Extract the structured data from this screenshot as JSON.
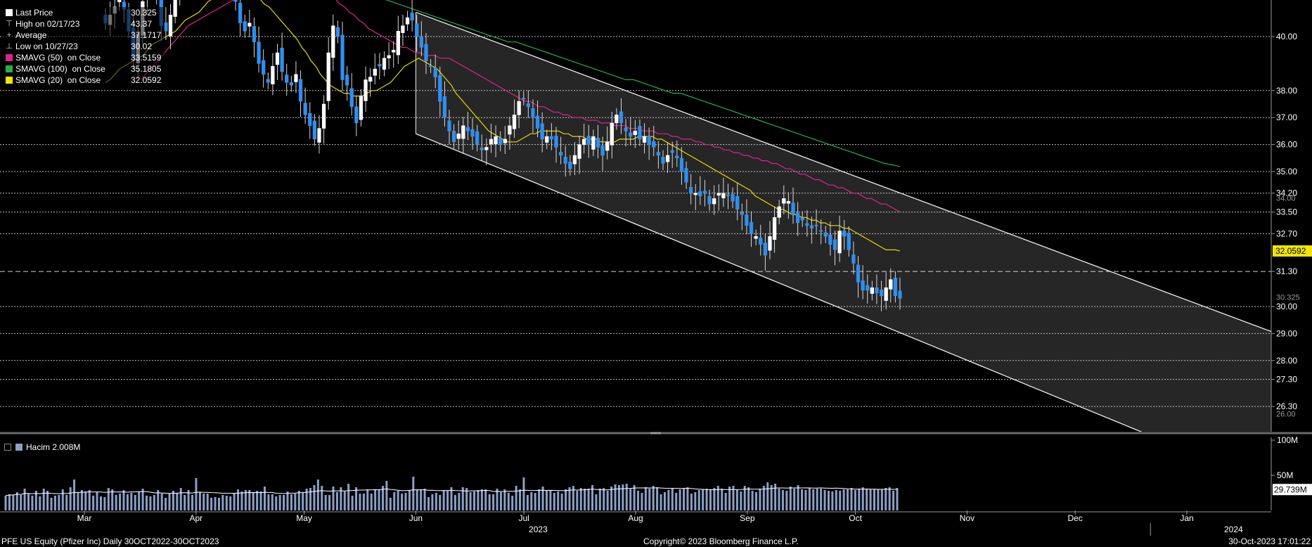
{
  "legend": {
    "items": [
      {
        "label": "Last Price",
        "value": "30.325",
        "color": "#ffffff",
        "icon": "square-swatch"
      },
      {
        "label": "High on 02/17/23",
        "value": "43.37",
        "icon": "high-marker-icon"
      },
      {
        "label": "Average",
        "value": "37.1717",
        "icon": "average-marker-icon"
      },
      {
        "label": "Low on 10/27/23",
        "value": "30.02",
        "icon": "low-marker-icon"
      },
      {
        "label": "SMAVG (50)  on Close",
        "value": "33.5159",
        "color": "#e0218a",
        "icon": "square-swatch"
      },
      {
        "label": "SMAVG (100)  on Close",
        "value": "35.1805",
        "color": "#22b04a",
        "icon": "square-swatch"
      },
      {
        "label": "SMAVG (20)  on Close",
        "value": "32.0592",
        "color": "#f2e600",
        "icon": "square-swatch"
      }
    ]
  },
  "volume_legend": {
    "label": "Hacim 2.008M",
    "color": "#8aa0c8"
  },
  "footer": {
    "left": "PFE US Equity (Pfizer Inc)  Daily 30OCT2022-30OCT2023",
    "center": "Copyright© 2023 Bloomberg Finance L.P.",
    "right": "30-Oct-2023 17:01:22"
  },
  "chart_data": {
    "type": "candlestick",
    "price_axis": {
      "ticks": [
        40.0,
        38.0,
        37.0,
        36.0,
        35.0,
        34.2,
        33.5,
        32.7,
        31.3,
        30.0,
        29.0,
        28.0,
        27.3,
        26.3
      ],
      "labels": [
        "40.00",
        "38.00",
        "37.00",
        "36.00",
        "35.00",
        "34.20",
        "33.50",
        "32.70",
        "31.30",
        "30.00",
        "29.00",
        "28.00",
        "27.30",
        "26.30"
      ],
      "partial_labels": [
        "34.00",
        "30.325",
        "26.00"
      ],
      "highlight_labels": [
        {
          "value": 32.0592,
          "label": "32.0592",
          "color": "#f2e600"
        }
      ],
      "dashed_line": 31.3
    },
    "months": [
      {
        "label": "Mar",
        "date": "2023-03-01"
      },
      {
        "label": "Apr",
        "date": "2023-04-01"
      },
      {
        "label": "May",
        "date": "2023-05-01"
      },
      {
        "label": "Jun",
        "date": "2023-06-01"
      },
      {
        "label": "Jul",
        "date": "2023-07-01"
      },
      {
        "label": "Aug",
        "date": "2023-08-01"
      },
      {
        "label": "Sep",
        "date": "2023-09-01"
      },
      {
        "label": "Oct",
        "date": "2023-10-01"
      },
      {
        "label": "Nov",
        "date": "2023-11-01"
      },
      {
        "label": "Dec",
        "date": "2023-12-01"
      },
      {
        "label": "Jan",
        "date": "2024-01-01"
      }
    ],
    "years": [
      {
        "label": "2023",
        "date": "2023-07-03"
      },
      {
        "label": "2024",
        "date": "2024-01-12"
      }
    ],
    "channel": {
      "start_date": "2023-06-01",
      "end_date": "2024-02-15",
      "upper": [
        40.9,
        28.0
      ],
      "lower": [
        36.4,
        22.2
      ]
    },
    "closes": [
      40.5,
      40.8,
      41.1,
      41.4,
      41.0,
      40.2,
      39.2,
      40.1,
      41.3,
      41.8,
      42.3,
      41.6,
      40.4,
      40.2,
      40.8,
      41.5,
      42.1,
      42.3,
      42.2,
      42.5,
      42.8,
      43.2,
      43.3,
      42.9,
      42.5,
      42.8,
      42.7,
      42.1,
      41.3,
      40.5,
      40.2,
      40.5,
      39.8,
      39.0,
      38.6,
      38.3,
      38.9,
      39.4,
      38.7,
      38.3,
      38.2,
      38.6,
      37.6,
      37.1,
      36.7,
      36.2,
      36.6,
      37.5,
      39.4,
      40.4,
      40.0,
      38.4,
      38.2,
      37.4,
      36.8,
      37.8,
      38.4,
      38.5,
      38.8,
      38.9,
      39.2,
      39.3,
      39.5,
      40.2,
      40.4,
      40.7,
      40.6,
      40.0,
      39.6,
      39.1,
      38.9,
      38.5,
      37.6,
      37.0,
      36.5,
      36.1,
      36.4,
      36.7,
      36.5,
      36.3,
      36.0,
      35.8,
      35.9,
      36.2,
      36.3,
      36.0,
      36.2,
      36.7,
      37.1,
      37.6,
      37.7,
      37.4,
      37.0,
      36.6,
      36.2,
      36.3,
      36.2,
      35.9,
      35.6,
      35.3,
      35.1,
      35.6,
      36.0,
      36.2,
      36.0,
      36.3,
      35.9,
      35.6,
      36.1,
      36.8,
      37.1,
      36.8,
      36.5,
      36.3,
      36.5,
      36.2,
      36.3,
      36.0,
      35.9,
      35.6,
      35.3,
      35.6,
      35.7,
      35.5,
      35.0,
      34.6,
      34.2,
      34.2,
      34.1,
      34.2,
      33.8,
      34.0,
      34.2,
      34.2,
      34.1,
      33.9,
      33.6,
      33.4,
      33.0,
      32.7,
      32.6,
      32.3,
      31.9,
      32.6,
      33.3,
      33.7,
      34.0,
      33.9,
      33.4,
      33.1,
      33.2,
      33.0,
      32.9,
      33.0,
      32.8,
      32.6,
      32.3,
      32.1,
      32.8,
      32.6,
      32.1,
      31.6,
      30.9,
      30.6,
      30.6,
      30.7,
      30.5,
      30.4,
      30.7,
      31.0,
      30.4,
      30.3
    ],
    "sma20": [
      38.3,
      38.4,
      38.6,
      38.8,
      38.9,
      39.0,
      39.1,
      39.2,
      39.3,
      39.5,
      39.7,
      39.8,
      39.9,
      40.0,
      40.1,
      40.2,
      40.4,
      40.6,
      40.7,
      40.8,
      40.9,
      41.1,
      41.3,
      41.4,
      41.5,
      41.6,
      41.6,
      41.7,
      41.7,
      41.6,
      41.6,
      41.6,
      41.5,
      41.4,
      41.2,
      41.1,
      40.9,
      40.7,
      40.5,
      40.3,
      40.1,
      39.9,
      39.6,
      39.4,
      39.1,
      38.9,
      38.6,
      38.4,
      38.2,
      38.1,
      38.0,
      37.9,
      37.9,
      37.8,
      37.8,
      37.8,
      37.9,
      38.0,
      38.0,
      38.1,
      38.2,
      38.3,
      38.5,
      38.7,
      38.9,
      39.0,
      39.1,
      39.2,
      39.1,
      39.0,
      38.9,
      38.8,
      38.6,
      38.4,
      38.2,
      37.9,
      37.7,
      37.5,
      37.3,
      37.1,
      36.9,
      36.7,
      36.5,
      36.4,
      36.3,
      36.2,
      36.1,
      36.1,
      36.1,
      36.2,
      36.3,
      36.4,
      36.4,
      36.5,
      36.5,
      36.5,
      36.5,
      36.5,
      36.4,
      36.4,
      36.3,
      36.3,
      36.3,
      36.2,
      36.2,
      36.2,
      36.1,
      36.1,
      36.1,
      36.1,
      36.2,
      36.2,
      36.2,
      36.2,
      36.3,
      36.3,
      36.3,
      36.3,
      36.2,
      36.2,
      36.1,
      36.0,
      35.9,
      35.8,
      35.7,
      35.6,
      35.5,
      35.4,
      35.3,
      35.2,
      35.1,
      35.0,
      34.9,
      34.8,
      34.7,
      34.6,
      34.5,
      34.4,
      34.3,
      34.1,
      34.0,
      33.9,
      33.8,
      33.7,
      33.6,
      33.6,
      33.5,
      33.4,
      33.4,
      33.3,
      33.3,
      33.2,
      33.2,
      33.1,
      33.1,
      33.0,
      33.0,
      33.0,
      32.9,
      32.9,
      32.8,
      32.7,
      32.6,
      32.5,
      32.4,
      32.3,
      32.2,
      32.1,
      32.1,
      32.1,
      32.06
    ],
    "sma50": [
      38.4,
      38.6,
      38.8,
      39.0,
      39.2,
      39.4,
      39.6,
      39.8,
      40.0,
      40.2,
      40.4,
      40.5,
      40.6,
      40.7,
      40.8,
      40.9,
      41.0,
      41.1,
      41.2,
      41.3,
      41.4,
      41.5,
      41.6,
      41.7,
      41.8,
      41.9,
      42.0,
      42.1,
      42.1,
      42.2,
      42.2,
      42.2,
      42.2,
      42.1,
      42.1,
      42.0,
      41.9,
      41.8,
      41.7,
      41.6,
      41.5,
      41.4,
      41.2,
      41.1,
      40.9,
      40.8,
      40.6,
      40.5,
      40.3,
      40.2,
      40.1,
      40.0,
      39.9,
      39.8,
      39.7,
      39.6,
      39.6,
      39.5,
      39.4,
      39.4,
      39.3,
      39.3,
      39.3,
      39.2,
      39.2,
      39.2,
      39.1,
      39.0,
      38.9,
      38.8,
      38.7,
      38.6,
      38.5,
      38.4,
      38.3,
      38.2,
      38.1,
      38.0,
      37.9,
      37.8,
      37.7,
      37.6,
      37.6,
      37.5,
      37.4,
      37.4,
      37.3,
      37.2,
      37.2,
      37.1,
      37.1,
      37.0,
      37.0,
      37.0,
      36.9,
      36.9,
      36.9,
      36.8,
      36.8,
      36.8,
      36.7,
      36.7,
      36.7,
      36.6,
      36.6,
      36.6,
      36.5,
      36.5,
      36.5,
      36.4,
      36.4,
      36.4,
      36.3,
      36.3,
      36.2,
      36.2,
      36.2,
      36.1,
      36.1,
      36.0,
      36.0,
      35.9,
      35.9,
      35.8,
      35.8,
      35.7,
      35.7,
      35.6,
      35.6,
      35.5,
      35.5,
      35.4,
      35.4,
      35.3,
      35.3,
      35.2,
      35.1,
      35.1,
      35.0,
      34.9,
      34.9,
      34.8,
      34.7,
      34.7,
      34.6,
      34.5,
      34.5,
      34.4,
      34.4,
      34.3,
      34.2,
      34.2,
      34.1,
      34.0,
      34.0,
      33.9,
      33.8,
      33.8,
      33.7,
      33.6,
      33.5
    ],
    "sma100": [
      42.5,
      42.5,
      42.4,
      42.3,
      42.3,
      42.2,
      42.1,
      42.0,
      41.9,
      41.8,
      41.7,
      41.6,
      41.5,
      41.4,
      41.3,
      41.2,
      41.1,
      41.0,
      40.9,
      40.8,
      40.7,
      40.6,
      40.5,
      40.4,
      40.3,
      40.2,
      40.1,
      40.0,
      39.9,
      39.8,
      39.8,
      39.7,
      39.6,
      39.5,
      39.4,
      39.3,
      39.2,
      39.1,
      39.0,
      38.9,
      38.8,
      38.7,
      38.6,
      38.5,
      38.4,
      38.4,
      38.3,
      38.2,
      38.1,
      38.0,
      37.9,
      37.9,
      37.8,
      37.7,
      37.6,
      37.5,
      37.4,
      37.3,
      37.2,
      37.1,
      37.0,
      36.9,
      36.8,
      36.7,
      36.6,
      36.5,
      36.4,
      36.3,
      36.2,
      36.1,
      36.0,
      35.9,
      35.8,
      35.7,
      35.6,
      35.5,
      35.4,
      35.3,
      35.25,
      35.18
    ],
    "volume": {
      "axis_ticks": [
        "100M",
        "50M"
      ],
      "labels": [
        {
          "value": "29.739M",
          "level": 29.739
        }
      ],
      "values": [
        21,
        23,
        22,
        26,
        22,
        31,
        24,
        21,
        28,
        20,
        31,
        28,
        18,
        21,
        22,
        30,
        22,
        33,
        44,
        26,
        29,
        27,
        29,
        21,
        26,
        20,
        19,
        32,
        30,
        22,
        24,
        29,
        23,
        25,
        22,
        27,
        31,
        21,
        20,
        22,
        29,
        24,
        18,
        24,
        28,
        25,
        32,
        22,
        29,
        22,
        46,
        26,
        24,
        24,
        18,
        19,
        18,
        22,
        21,
        20,
        24,
        30,
        27,
        29,
        29,
        26,
        28,
        27,
        34,
        23,
        23,
        20,
        22,
        22,
        27,
        23,
        24,
        28,
        26,
        31,
        32,
        36,
        44,
        35,
        22,
        22,
        34,
        26,
        33,
        27,
        38,
        21,
        33,
        24,
        24,
        30,
        24,
        30,
        30,
        35,
        42,
        18,
        26,
        28,
        24,
        25,
        29,
        48,
        29,
        30,
        31,
        19,
        23,
        25,
        22,
        28,
        28,
        33,
        22,
        25,
        33,
        32,
        26,
        27,
        29,
        30,
        30,
        23,
        23,
        31,
        26,
        30,
        25,
        21,
        35,
        30,
        47,
        22,
        26,
        25,
        30,
        34,
        28,
        29,
        25,
        27,
        24,
        30,
        33,
        35,
        28,
        32,
        31,
        31,
        36,
        23,
        31,
        32,
        28,
        34,
        37,
        36,
        37,
        38,
        31,
        36,
        28,
        25,
        33,
        31,
        35,
        33,
        23,
        26,
        29,
        32,
        25,
        30,
        32,
        33,
        24,
        26,
        29,
        30,
        31,
        30,
        32,
        35,
        31,
        25,
        34,
        35,
        29,
        27,
        35,
        33,
        28,
        26,
        31,
        35,
        40,
        36,
        38,
        31,
        29,
        28,
        34,
        31,
        36,
        30,
        29,
        32,
        30,
        31,
        31,
        29,
        28,
        27,
        29,
        28,
        30,
        30,
        32,
        29,
        31,
        33,
        30,
        30,
        30,
        30,
        30,
        32,
        33,
        28,
        32
      ]
    }
  }
}
